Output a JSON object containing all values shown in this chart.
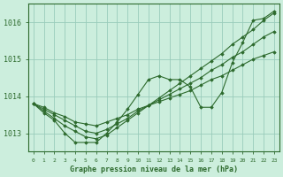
{
  "xlabel": "Graphe pression niveau de la mer (hPa)",
  "hours": [
    0,
    1,
    2,
    3,
    4,
    5,
    6,
    7,
    8,
    9,
    10,
    11,
    12,
    13,
    14,
    15,
    16,
    17,
    18,
    19,
    20,
    21,
    22,
    23
  ],
  "series": [
    [
      1013.8,
      1013.7,
      1013.55,
      1013.45,
      1013.3,
      1013.25,
      1013.2,
      1013.3,
      1013.4,
      1013.5,
      1013.65,
      1013.75,
      1013.85,
      1013.95,
      1014.05,
      1014.15,
      1014.3,
      1014.45,
      1014.55,
      1014.7,
      1014.85,
      1015.0,
      1015.1,
      1015.2
    ],
    [
      1013.8,
      1013.65,
      1013.5,
      1013.35,
      1013.2,
      1013.05,
      1013.0,
      1013.1,
      1013.25,
      1013.4,
      1013.6,
      1013.75,
      1013.9,
      1014.05,
      1014.2,
      1014.35,
      1014.5,
      1014.7,
      1014.85,
      1015.05,
      1015.2,
      1015.4,
      1015.6,
      1015.75
    ],
    [
      1013.8,
      1013.6,
      1013.4,
      1013.2,
      1013.05,
      1012.9,
      1012.85,
      1012.95,
      1013.15,
      1013.35,
      1013.55,
      1013.75,
      1013.95,
      1014.15,
      1014.35,
      1014.55,
      1014.75,
      1014.95,
      1015.15,
      1015.4,
      1015.6,
      1015.8,
      1016.05,
      1016.25
    ],
    [
      1013.8,
      1013.55,
      1013.35,
      1013.0,
      1012.75,
      1012.75,
      1012.75,
      1013.0,
      1013.3,
      1013.65,
      1014.05,
      1014.45,
      1014.55,
      1014.45,
      1014.45,
      1014.25,
      1013.7,
      1013.7,
      1014.1,
      1014.9,
      1015.45,
      1016.05,
      1016.1,
      1016.3
    ]
  ],
  "line_color": "#2d6a2d",
  "marker_color": "#2d6a2d",
  "bg_color": "#cceedd",
  "grid_color": "#99ccbb",
  "axis_color": "#2d6a2d",
  "tick_label_color": "#2d6a2d",
  "xlabel_color": "#2d6a2d",
  "ylim": [
    1012.5,
    1016.5
  ],
  "yticks": [
    1013,
    1014,
    1015,
    1016
  ],
  "xticks": [
    0,
    1,
    2,
    3,
    4,
    5,
    6,
    7,
    8,
    9,
    10,
    11,
    12,
    13,
    14,
    15,
    16,
    17,
    18,
    19,
    20,
    21,
    22,
    23
  ]
}
